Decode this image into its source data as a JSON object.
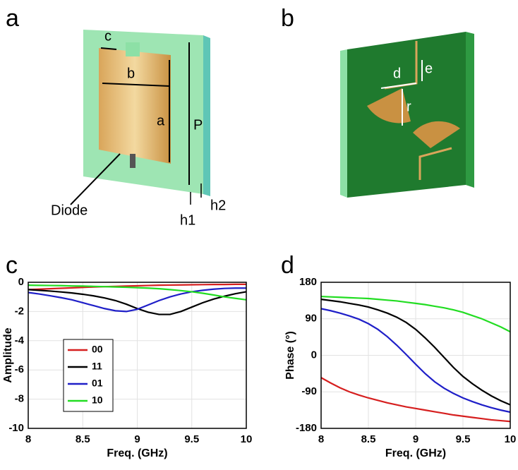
{
  "panel_labels": [
    "a",
    "b",
    "c",
    "d"
  ],
  "front_labels": [
    "c",
    "b",
    "a",
    "P",
    "Diode",
    "h1",
    "h2"
  ],
  "back_labels": [
    "d",
    "e",
    "r"
  ],
  "chart_data": [
    {
      "type": "line",
      "xlabel": "Freq. (GHz)",
      "ylabel": "Amplitude",
      "xlim": [
        8,
        10
      ],
      "xticks": [
        8,
        8.5,
        9,
        9.5,
        10
      ],
      "ylim": [
        -10,
        0
      ],
      "yticks": [
        -10,
        -8,
        -6,
        -4,
        -2,
        0
      ],
      "grid": true,
      "legend": "lower left",
      "x": [
        8.0,
        8.1,
        8.2,
        8.3,
        8.4,
        8.5,
        8.6,
        8.7,
        8.8,
        8.9,
        9.0,
        9.1,
        9.2,
        9.3,
        9.4,
        9.5,
        9.6,
        9.7,
        9.8,
        9.9,
        10.0
      ],
      "series": [
        {
          "name": "00",
          "color": "#d61f1f",
          "values": [
            -0.5,
            -0.47,
            -0.44,
            -0.41,
            -0.38,
            -0.35,
            -0.32,
            -0.3,
            -0.28,
            -0.26,
            -0.24,
            -0.22,
            -0.2,
            -0.19,
            -0.18,
            -0.17,
            -0.16,
            -0.15,
            -0.15,
            -0.14,
            -0.14
          ]
        },
        {
          "name": "11",
          "color": "#000000",
          "values": [
            -0.5,
            -0.55,
            -0.6,
            -0.66,
            -0.73,
            -0.82,
            -0.93,
            -1.07,
            -1.25,
            -1.5,
            -1.8,
            -2.05,
            -2.2,
            -2.2,
            -2.0,
            -1.7,
            -1.4,
            -1.15,
            -0.95,
            -0.78,
            -0.65
          ]
        },
        {
          "name": "01",
          "color": "#1f1fc8",
          "values": [
            -0.7,
            -0.8,
            -0.92,
            -1.05,
            -1.2,
            -1.4,
            -1.6,
            -1.8,
            -1.95,
            -2.0,
            -1.85,
            -1.55,
            -1.25,
            -1.0,
            -0.8,
            -0.65,
            -0.55,
            -0.47,
            -0.42,
            -0.4,
            -0.4
          ]
        },
        {
          "name": "10",
          "color": "#22dd22",
          "values": [
            -0.2,
            -0.21,
            -0.22,
            -0.23,
            -0.25,
            -0.26,
            -0.28,
            -0.3,
            -0.32,
            -0.34,
            -0.37,
            -0.4,
            -0.44,
            -0.5,
            -0.57,
            -0.65,
            -0.75,
            -0.87,
            -1.0,
            -1.1,
            -1.2
          ]
        }
      ]
    },
    {
      "type": "line",
      "xlabel": "Freq. (GHz)",
      "ylabel": "Phase (°)",
      "xlim": [
        8,
        10
      ],
      "xticks": [
        8,
        8.5,
        9,
        9.5,
        10
      ],
      "ylim": [
        -180,
        180
      ],
      "yticks": [
        -180,
        -90,
        0,
        90,
        180
      ],
      "grid": true,
      "x": [
        8.0,
        8.1,
        8.2,
        8.3,
        8.4,
        8.5,
        8.6,
        8.7,
        8.8,
        8.9,
        9.0,
        9.1,
        9.2,
        9.3,
        9.4,
        9.5,
        9.6,
        9.7,
        9.8,
        9.9,
        10.0
      ],
      "series": [
        {
          "color": "#d61f1f",
          "values": [
            -55,
            -68,
            -80,
            -90,
            -98,
            -105,
            -111,
            -117,
            -122,
            -127,
            -131,
            -135,
            -139,
            -143,
            -147,
            -150,
            -153,
            -156,
            -159,
            -161,
            -163
          ]
        },
        {
          "color": "#000000",
          "values": [
            138,
            135,
            132,
            128,
            124,
            119,
            112,
            104,
            94,
            81,
            64,
            43,
            20,
            -5,
            -30,
            -52,
            -70,
            -86,
            -100,
            -112,
            -122
          ]
        },
        {
          "color": "#1f1fc8",
          "values": [
            115,
            110,
            104,
            97,
            89,
            78,
            64,
            46,
            25,
            2,
            -22,
            -45,
            -65,
            -81,
            -94,
            -105,
            -114,
            -122,
            -129,
            -135,
            -140
          ]
        },
        {
          "color": "#22dd22",
          "values": [
            145,
            144,
            143,
            142,
            141,
            140,
            138,
            136,
            134,
            131,
            128,
            125,
            121,
            117,
            112,
            106,
            98,
            90,
            80,
            70,
            58
          ]
        }
      ]
    }
  ]
}
